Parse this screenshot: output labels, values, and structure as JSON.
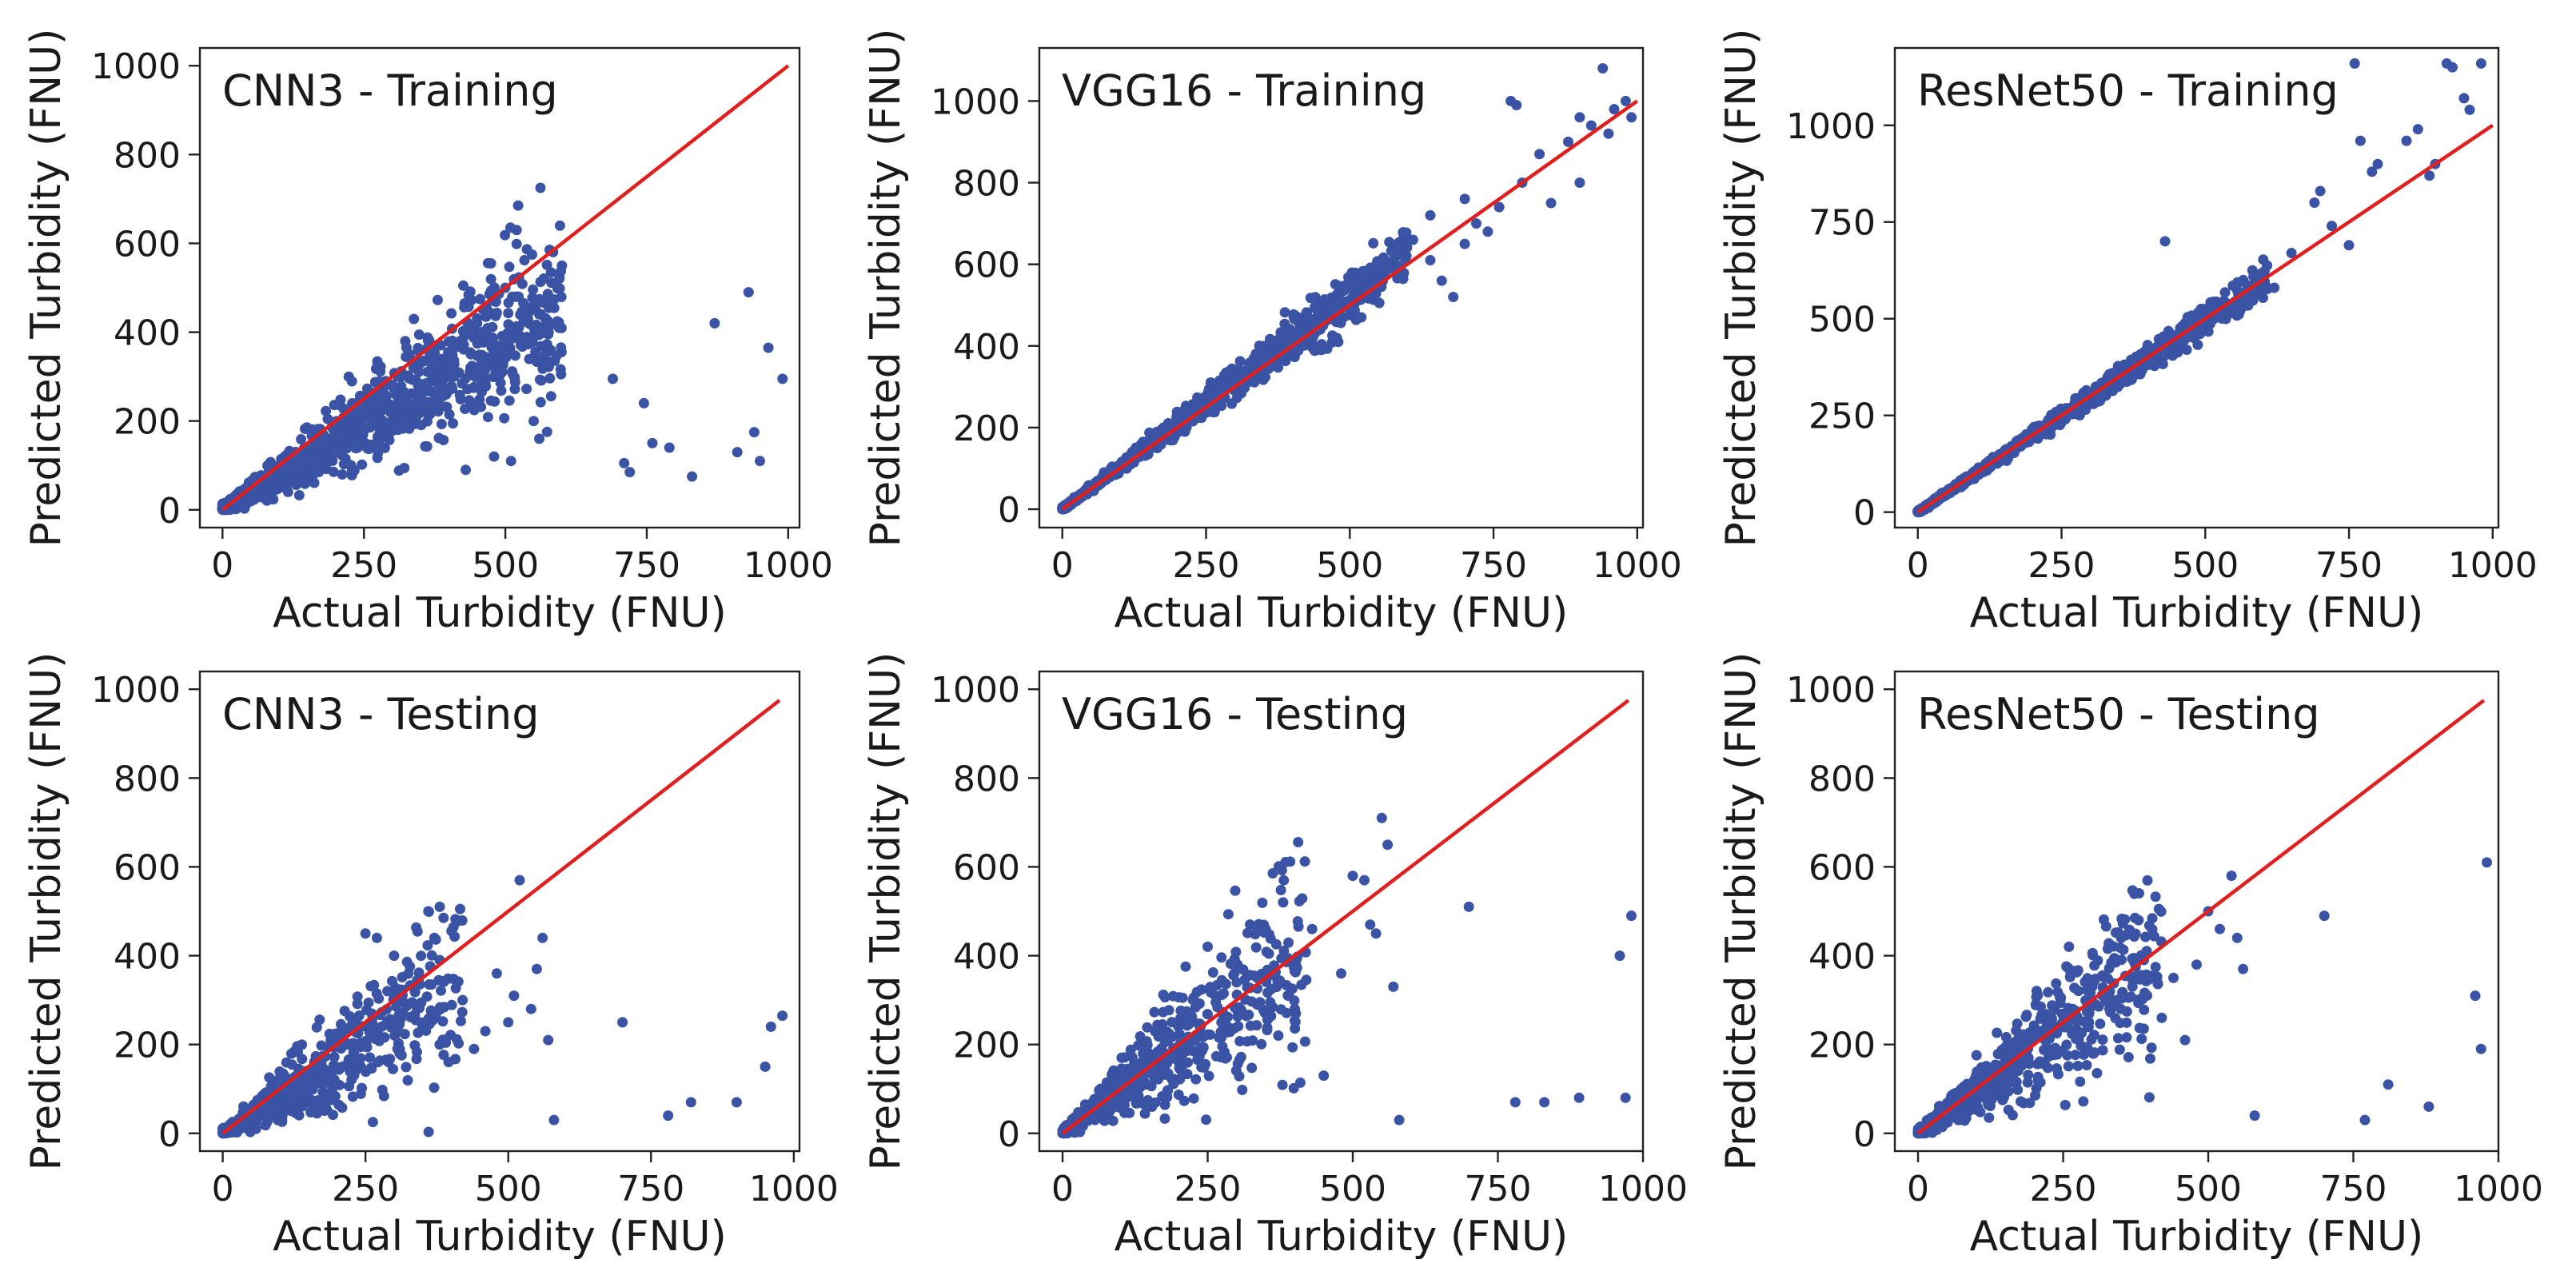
{
  "colors": {
    "points": "#3a53a4",
    "identity_line": "#e0201f",
    "frame": "#222222"
  },
  "chart_data": [
    {
      "type": "scatter",
      "title": "CNN3 - Training",
      "xlabel": "Actual Turbidity (FNU)",
      "ylabel": "Predicted Turbidity (FNU)",
      "xlim": [
        -40,
        1020
      ],
      "ylim": [
        -40,
        1040
      ],
      "xticks": [
        0,
        250,
        500,
        750,
        1000
      ],
      "yticks": [
        0,
        200,
        400,
        600,
        800,
        1000
      ],
      "xtick_labels": [
        "0",
        "250",
        "500",
        "750",
        "1000"
      ],
      "ytick_labels": [
        "0",
        "200",
        "400",
        "600",
        "800",
        "1000"
      ],
      "identity_line": [
        0,
        1000
      ],
      "cluster": {
        "n": 1400,
        "xmax": 600,
        "slope": 0.78,
        "noise": 0.22,
        "floor": 6,
        "seed": 11
      },
      "points": [
        [
          30,
          10
        ],
        [
          60,
          40
        ],
        [
          120,
          90
        ],
        [
          180,
          150
        ],
        [
          250,
          220
        ],
        [
          300,
          280
        ],
        [
          350,
          330
        ],
        [
          400,
          300
        ],
        [
          420,
          380
        ],
        [
          450,
          420
        ],
        [
          480,
          470
        ],
        [
          500,
          500
        ],
        [
          520,
          480
        ],
        [
          540,
          430
        ],
        [
          560,
          440
        ],
        [
          580,
          360
        ],
        [
          600,
          550
        ],
        [
          520,
          630
        ],
        [
          430,
          90
        ],
        [
          480,
          120
        ],
        [
          510,
          110
        ],
        [
          550,
          200
        ],
        [
          560,
          160
        ],
        [
          690,
          295
        ],
        [
          710,
          105
        ],
        [
          720,
          85
        ],
        [
          745,
          240
        ],
        [
          760,
          150
        ],
        [
          790,
          140
        ],
        [
          830,
          75
        ],
        [
          870,
          420
        ],
        [
          910,
          130
        ],
        [
          930,
          490
        ],
        [
          940,
          175
        ],
        [
          950,
          110
        ],
        [
          965,
          365
        ],
        [
          990,
          295
        ]
      ]
    },
    {
      "type": "scatter",
      "title": "VGG16 - Training",
      "xlabel": "Actual Turbidity (FNU)",
      "ylabel": "Predicted Turbidity (FNU)",
      "xlim": [
        -40,
        1010
      ],
      "ylim": [
        -45,
        1130
      ],
      "xticks": [
        0,
        250,
        500,
        750,
        1000
      ],
      "yticks": [
        0,
        200,
        400,
        600,
        800,
        1000
      ],
      "xtick_labels": [
        "0",
        "250",
        "500",
        "750",
        "1000"
      ],
      "ytick_labels": [
        "0",
        "200",
        "400",
        "600",
        "800",
        "1000"
      ],
      "identity_line": [
        0,
        1000
      ],
      "cluster": {
        "n": 1300,
        "xmax": 600,
        "slope": 1.04,
        "noise": 0.06,
        "floor": 2,
        "seed": 23
      },
      "points": [
        [
          450,
          390
        ],
        [
          480,
          410
        ],
        [
          520,
          470
        ],
        [
          540,
          560
        ],
        [
          560,
          610
        ],
        [
          570,
          590
        ],
        [
          580,
          620
        ],
        [
          610,
          660
        ],
        [
          640,
          610
        ],
        [
          660,
          560
        ],
        [
          680,
          520
        ],
        [
          700,
          650
        ],
        [
          720,
          700
        ],
        [
          740,
          680
        ],
        [
          760,
          740
        ],
        [
          780,
          1000
        ],
        [
          790,
          990
        ],
        [
          800,
          800
        ],
        [
          830,
          870
        ],
        [
          850,
          750
        ],
        [
          880,
          900
        ],
        [
          900,
          960
        ],
        [
          920,
          940
        ],
        [
          940,
          1080
        ],
        [
          950,
          920
        ],
        [
          960,
          980
        ],
        [
          980,
          1000
        ],
        [
          990,
          960
        ],
        [
          900,
          800
        ],
        [
          640,
          720
        ],
        [
          700,
          760
        ]
      ]
    },
    {
      "type": "scatter",
      "title": "ResNet50 - Training",
      "xlabel": "Actual Turbidity (FNU)",
      "ylabel": "Predicted Turbidity (FNU)",
      "xlim": [
        -40,
        1010
      ],
      "ylim": [
        -40,
        1200
      ],
      "xticks": [
        0,
        250,
        500,
        750,
        1000
      ],
      "yticks": [
        0,
        250,
        500,
        750,
        1000
      ],
      "xtick_labels": [
        "0",
        "250",
        "500",
        "750",
        "1000"
      ],
      "ytick_labels": [
        "0",
        "250",
        "500",
        "750",
        "1000"
      ],
      "identity_line": [
        0,
        1000
      ],
      "cluster": {
        "n": 1300,
        "xmax": 610,
        "slope": 0.99,
        "noise": 0.04,
        "floor": 2,
        "seed": 37
      },
      "points": [
        [
          430,
          700
        ],
        [
          600,
          600
        ],
        [
          620,
          580
        ],
        [
          650,
          670
        ],
        [
          690,
          800
        ],
        [
          700,
          830
        ],
        [
          720,
          740
        ],
        [
          750,
          690
        ],
        [
          760,
          1160
        ],
        [
          770,
          960
        ],
        [
          790,
          880
        ],
        [
          800,
          900
        ],
        [
          850,
          960
        ],
        [
          870,
          990
        ],
        [
          890,
          870
        ],
        [
          900,
          900
        ],
        [
          920,
          1160
        ],
        [
          930,
          1150
        ],
        [
          950,
          1070
        ],
        [
          960,
          1040
        ],
        [
          980,
          1160
        ]
      ]
    },
    {
      "type": "scatter",
      "title": "CNN3 - Testing",
      "xlabel": "Actual Turbidity (FNU)",
      "ylabel": "Predicted Turbidity (FNU)",
      "xlim": [
        -40,
        1010
      ],
      "ylim": [
        -40,
        1040
      ],
      "xticks": [
        0,
        250,
        500,
        750,
        1000
      ],
      "yticks": [
        0,
        200,
        400,
        600,
        800,
        1000
      ],
      "xtick_labels": [
        "0",
        "250",
        "500",
        "750",
        "1000"
      ],
      "ytick_labels": [
        "0",
        "200",
        "400",
        "600",
        "800",
        "1000"
      ],
      "identity_line": [
        0,
        975
      ],
      "cluster": {
        "n": 700,
        "xmax": 420,
        "slope": 0.78,
        "noise": 0.35,
        "floor": 5,
        "seed": 41
      },
      "points": [
        [
          250,
          450
        ],
        [
          270,
          440
        ],
        [
          300,
          400
        ],
        [
          360,
          500
        ],
        [
          380,
          510
        ],
        [
          420,
          300
        ],
        [
          440,
          190
        ],
        [
          460,
          230
        ],
        [
          480,
          360
        ],
        [
          500,
          250
        ],
        [
          510,
          310
        ],
        [
          520,
          570
        ],
        [
          540,
          280
        ],
        [
          550,
          370
        ],
        [
          560,
          440
        ],
        [
          570,
          210
        ],
        [
          580,
          30
        ],
        [
          700,
          250
        ],
        [
          780,
          40
        ],
        [
          820,
          70
        ],
        [
          900,
          70
        ],
        [
          950,
          150
        ],
        [
          960,
          240
        ],
        [
          980,
          265
        ]
      ]
    },
    {
      "type": "scatter",
      "title": "VGG16 - Testing",
      "xlabel": "Actual Turbidity (FNU)",
      "ylabel": "Predicted Turbidity (FNU)",
      "xlim": [
        -40,
        1000
      ],
      "ylim": [
        -40,
        1040
      ],
      "xticks": [
        0,
        250,
        500,
        750,
        1000
      ],
      "yticks": [
        0,
        200,
        400,
        600,
        800,
        1000
      ],
      "xtick_labels": [
        "0",
        "250",
        "500",
        "750",
        "1000"
      ],
      "ytick_labels": [
        "0",
        "200",
        "400",
        "600",
        "800",
        "1000"
      ],
      "identity_line": [
        0,
        975
      ],
      "cluster": {
        "n": 750,
        "xmax": 420,
        "slope": 1.0,
        "noise": 0.3,
        "floor": 5,
        "seed": 53
      },
      "points": [
        [
          250,
          420
        ],
        [
          300,
          340
        ],
        [
          350,
          460
        ],
        [
          380,
          520
        ],
        [
          400,
          280
        ],
        [
          430,
          460
        ],
        [
          450,
          130
        ],
        [
          480,
          360
        ],
        [
          500,
          580
        ],
        [
          520,
          570
        ],
        [
          530,
          470
        ],
        [
          540,
          450
        ],
        [
          550,
          710
        ],
        [
          560,
          650
        ],
        [
          570,
          330
        ],
        [
          580,
          30
        ],
        [
          700,
          510
        ],
        [
          780,
          70
        ],
        [
          830,
          70
        ],
        [
          890,
          80
        ],
        [
          960,
          400
        ],
        [
          970,
          80
        ],
        [
          980,
          490
        ]
      ]
    },
    {
      "type": "scatter",
      "title": "ResNet50 - Testing",
      "xlabel": "Actual Turbidity (FNU)",
      "ylabel": "Predicted Turbidity (FNU)",
      "xlim": [
        -40,
        1000
      ],
      "ylim": [
        -40,
        1040
      ],
      "xticks": [
        0,
        250,
        500,
        750,
        1000
      ],
      "yticks": [
        0,
        200,
        400,
        600,
        800,
        1000
      ],
      "xtick_labels": [
        "0",
        "250",
        "500",
        "750",
        "1000"
      ],
      "ytick_labels": [
        "0",
        "200",
        "400",
        "600",
        "800",
        "1000"
      ],
      "identity_line": [
        0,
        975
      ],
      "cluster": {
        "n": 750,
        "xmax": 420,
        "slope": 0.95,
        "noise": 0.3,
        "floor": 5,
        "seed": 67
      },
      "points": [
        [
          260,
          420
        ],
        [
          300,
          330
        ],
        [
          350,
          440
        ],
        [
          380,
          480
        ],
        [
          420,
          260
        ],
        [
          440,
          350
        ],
        [
          460,
          210
        ],
        [
          480,
          380
        ],
        [
          500,
          500
        ],
        [
          520,
          460
        ],
        [
          540,
          580
        ],
        [
          550,
          440
        ],
        [
          560,
          370
        ],
        [
          580,
          40
        ],
        [
          700,
          490
        ],
        [
          770,
          30
        ],
        [
          810,
          110
        ],
        [
          880,
          60
        ],
        [
          960,
          310
        ],
        [
          970,
          190
        ],
        [
          980,
          610
        ]
      ]
    }
  ]
}
